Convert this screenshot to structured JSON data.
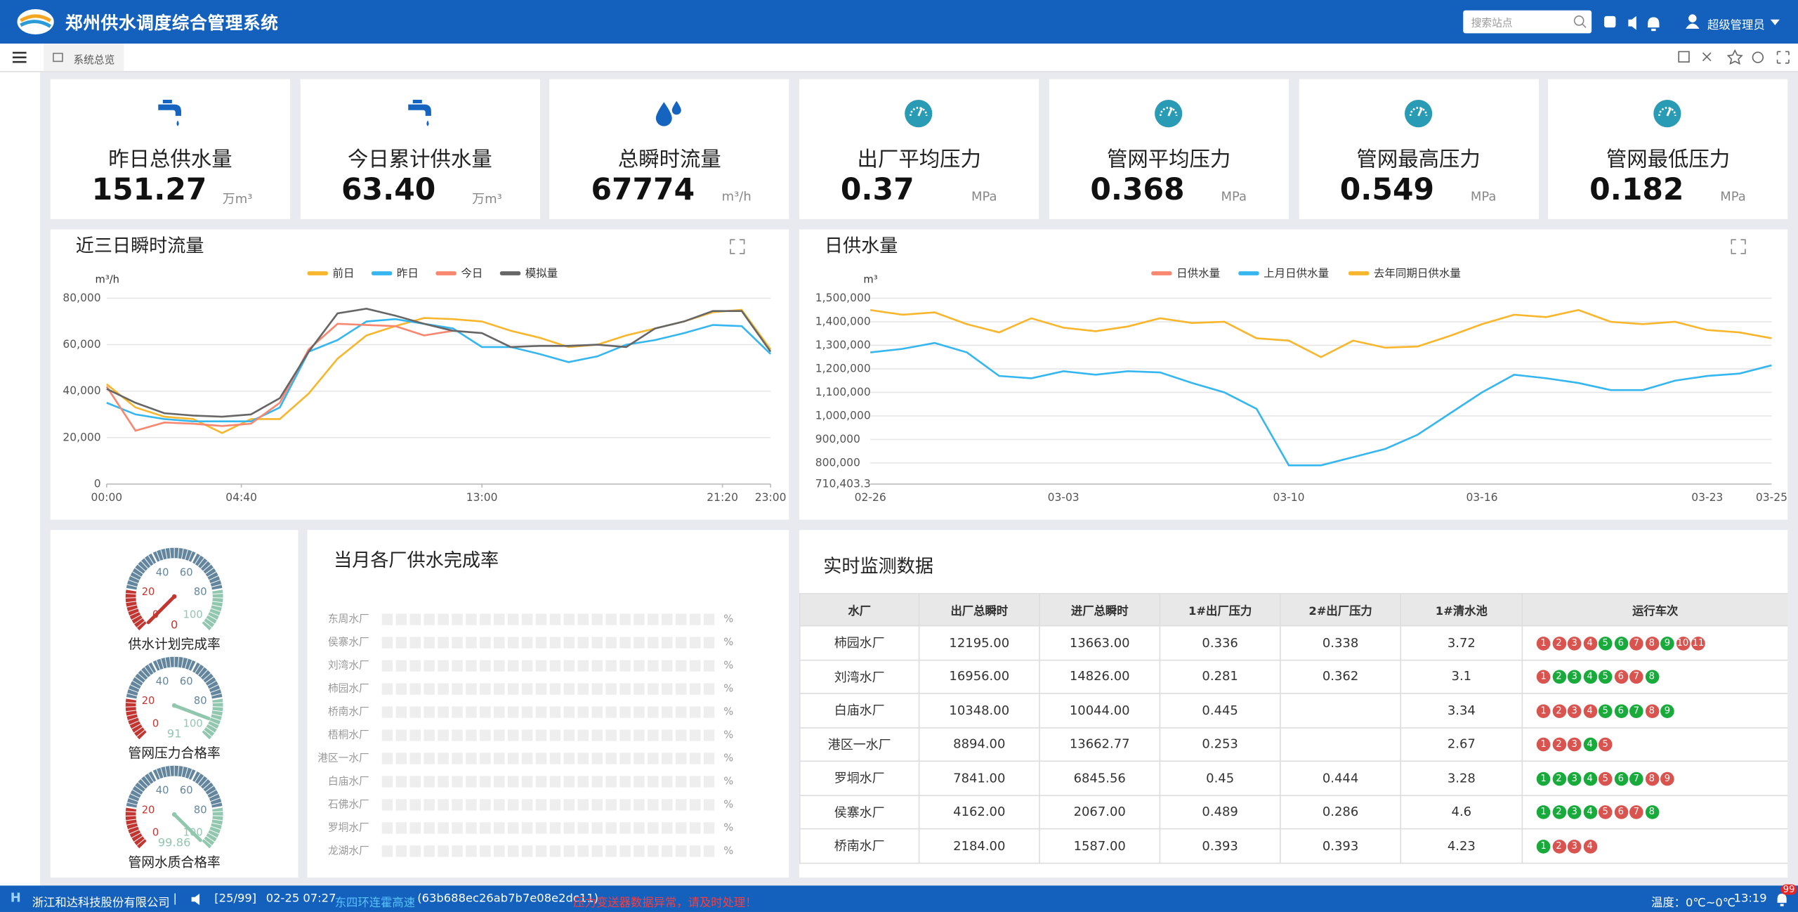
{
  "header": {
    "title": "郑州供水调度综合管理系统",
    "search_placeholder": "搜索站点",
    "user": "超级管理员"
  },
  "tabs": [
    "系统总览"
  ],
  "kpis": [
    {
      "label": "昨日总供水量",
      "value": "151.27",
      "unit": "万m³"
    },
    {
      "label": "今日累计供水量",
      "value": "63.40",
      "unit": "万m³"
    },
    {
      "label": "总瞬时流量",
      "value": "67774",
      "unit": "m³/h"
    },
    {
      "label": "出厂平均压力",
      "value": "0.37",
      "unit": "MPa"
    },
    {
      "label": "管网平均压力",
      "value": "0.368",
      "unit": "MPa"
    },
    {
      "label": "管网最高压力",
      "value": "0.549",
      "unit": "MPa"
    },
    {
      "label": "管网最低压力",
      "value": "0.182",
      "unit": "MPa"
    }
  ],
  "flow_chart": {
    "type": "line",
    "title": "近三日瞬时流量",
    "y_unit": "m³/h",
    "x": [
      0,
      60,
      120,
      180,
      240,
      300,
      360,
      420,
      480,
      540,
      600,
      660,
      720,
      780,
      840,
      900,
      960,
      1020,
      1080,
      1140,
      1200,
      1260,
      1320,
      1380
    ],
    "xlim": [
      0,
      1380
    ],
    "xticks": [
      {
        "value": 0,
        "label": "00:00"
      },
      {
        "value": 280,
        "label": "04:40"
      },
      {
        "value": 780,
        "label": "13:00"
      },
      {
        "value": 1280,
        "label": "21:20"
      },
      {
        "value": 1380,
        "label": "23:00"
      }
    ],
    "ylim": [
      0,
      80000
    ],
    "yticks": [
      0,
      {
        "value": 20000,
        "label": "20,000"
      },
      {
        "value": 40000,
        "label": "40,000"
      },
      {
        "value": 60000,
        "label": "60,000"
      },
      {
        "value": 80000,
        "label": "80,000"
      }
    ],
    "grid": true,
    "series": [
      {
        "name": "前日",
        "color": "#f8b62d",
        "values": [
          43000,
          33000,
          29000,
          28000,
          22000,
          28000,
          28000,
          39000,
          54000,
          64000,
          68000,
          71500,
          71000,
          70000,
          66000,
          63000,
          59000,
          60000,
          64000,
          67000,
          70000,
          74000,
          75000,
          58000
        ]
      },
      {
        "name": "昨日",
        "color": "#35b6ef",
        "values": [
          35000,
          30000,
          28000,
          27000,
          27000,
          27000,
          33000,
          57000,
          62000,
          70000,
          71000,
          69000,
          67000,
          59000,
          59000,
          56000,
          52500,
          55000,
          60000,
          62000,
          65000,
          68500,
          68000,
          56000
        ]
      },
      {
        "name": "今日",
        "color": "#f7876f",
        "values": [
          42000,
          23000,
          26500,
          26000,
          25000,
          26000,
          35000,
          58000,
          69000,
          68500,
          68000,
          64000,
          66000,
          null,
          null,
          null,
          null,
          null,
          null,
          null,
          null,
          null,
          null,
          null
        ]
      },
      {
        "name": "模拟量",
        "color": "#666666",
        "values": [
          41000,
          35000,
          30500,
          29500,
          29000,
          30000,
          37000,
          57000,
          73500,
          75500,
          72500,
          69000,
          66000,
          65000,
          59000,
          59500,
          59500,
          60000,
          59000,
          67000,
          70000,
          74500,
          74500,
          57000
        ]
      }
    ]
  },
  "daily_chart": {
    "type": "line",
    "title": "日供水量",
    "y_unit": "m³",
    "categories": [
      "02-26",
      null,
      null,
      null,
      null,
      null,
      "03-03",
      null,
      null,
      null,
      null,
      null,
      null,
      "03-10",
      null,
      null,
      null,
      null,
      null,
      "03-16",
      null,
      null,
      null,
      null,
      null,
      null,
      "03-23",
      null,
      "03-25"
    ],
    "ylim": [
      710403.3,
      1500000
    ],
    "yticks": [
      {
        "value": 710403.3,
        "label": "710,403.3"
      },
      {
        "value": 800000,
        "label": "800,000"
      },
      {
        "value": 900000,
        "label": "900,000"
      },
      {
        "value": 1000000,
        "label": "1,000,000"
      },
      {
        "value": 1100000,
        "label": "1,100,000"
      },
      {
        "value": 1200000,
        "label": "1,200,000"
      },
      {
        "value": 1300000,
        "label": "1,300,000"
      },
      {
        "value": 1400000,
        "label": "1,400,000"
      },
      {
        "value": 1500000,
        "label": "1,500,000"
      }
    ],
    "grid": true,
    "series": [
      {
        "name": "日供水量",
        "color": "#f7876f",
        "values": [
          null,
          null,
          null,
          null,
          null,
          null,
          null,
          null,
          null,
          null,
          null,
          null,
          null,
          null,
          null,
          null,
          null,
          null,
          null,
          null,
          null,
          null,
          null,
          null,
          null,
          null,
          null,
          null,
          null
        ]
      },
      {
        "name": "上月日供水量",
        "color": "#35b6ef",
        "values": [
          1270000,
          1285000,
          1310000,
          1270000,
          1170000,
          1160000,
          1190000,
          1175000,
          1190000,
          1185000,
          1140000,
          1100000,
          1030000,
          790000,
          790000,
          825000,
          860000,
          920000,
          1010000,
          1100000,
          1175000,
          1160000,
          1140000,
          1110000,
          1110000,
          1150000,
          1170000,
          1180000,
          1215000
        ]
      },
      {
        "name": "去年同期日供水量",
        "color": "#f8b62d",
        "values": [
          1450000,
          1430000,
          1440000,
          1390000,
          1355000,
          1415000,
          1375000,
          1360000,
          1380000,
          1415000,
          1395000,
          1400000,
          1330000,
          1320000,
          1250000,
          1320000,
          1290000,
          1295000,
          1340000,
          1390000,
          1430000,
          1420000,
          1450000,
          1400000,
          1390000,
          1400000,
          1365000,
          1355000,
          1330000
        ]
      }
    ]
  },
  "gauges": {
    "type": "gauge",
    "min": 0,
    "max": 100,
    "ticks": [
      0,
      20,
      40,
      60,
      80,
      100
    ],
    "bands": [
      {
        "to": 20,
        "color": "#c23531"
      },
      {
        "to": 80,
        "color": "#63869e"
      },
      {
        "to": 100,
        "color": "#91c7ae"
      }
    ],
    "items": [
      {
        "label": "供水计划完成率",
        "value": 0
      },
      {
        "label": "管网压力合格率",
        "value": 91
      },
      {
        "label": "管网水质合格率",
        "value": 99.86
      }
    ]
  },
  "completion_chart": {
    "type": "bar",
    "title": "当月各厂供水完成率",
    "categories": [
      "东周水厂",
      "侯寨水厂",
      "刘湾水厂",
      "柿园水厂",
      "桥南水厂",
      "梧桐水厂",
      "港区一水厂",
      "白庙水厂",
      "石佛水厂",
      "罗垌水厂",
      "龙湖水厂"
    ],
    "values": [
      null,
      null,
      null,
      null,
      null,
      null,
      null,
      null,
      null,
      null,
      null
    ],
    "unit": "%"
  },
  "monitor_table": {
    "title": "实时监测数据",
    "columns": [
      "水厂",
      "出厂总瞬时",
      "进厂总瞬时",
      "1#出厂压力",
      "2#出厂压力",
      "1#清水池",
      "运行车次"
    ],
    "trip_colors": {
      "r": "#d9534f",
      "g": "#19aa3c"
    },
    "rows": [
      {
        "cells": [
          "柿园水厂",
          "12195.00",
          "13663.00",
          "0.336",
          "0.338",
          "3.72"
        ],
        "trips": [
          1,
          2,
          3,
          4,
          5,
          6,
          7,
          8,
          9,
          10,
          11
        ],
        "trip_states": [
          "r",
          "r",
          "r",
          "r",
          "g",
          "g",
          "r",
          "r",
          "g",
          "r",
          "r"
        ]
      },
      {
        "cells": [
          "刘湾水厂",
          "16956.00",
          "14826.00",
          "0.281",
          "0.362",
          "3.1"
        ],
        "trips": [
          1,
          2,
          3,
          4,
          5,
          6,
          7,
          8
        ],
        "trip_states": [
          "r",
          "g",
          "g",
          "g",
          "g",
          "r",
          "r",
          "g"
        ]
      },
      {
        "cells": [
          "白庙水厂",
          "10348.00",
          "10044.00",
          "0.445",
          "",
          "3.34"
        ],
        "trips": [
          1,
          2,
          3,
          4,
          5,
          6,
          7,
          8,
          9
        ],
        "trip_states": [
          "r",
          "r",
          "r",
          "r",
          "g",
          "g",
          "g",
          "r",
          "g"
        ]
      },
      {
        "cells": [
          "港区一水厂",
          "8894.00",
          "13662.77",
          "0.253",
          "",
          "2.67"
        ],
        "trips": [
          1,
          2,
          3,
          4,
          5
        ],
        "trip_states": [
          "r",
          "r",
          "r",
          "g",
          "r"
        ]
      },
      {
        "cells": [
          "罗垌水厂",
          "7841.00",
          "6845.56",
          "0.45",
          "0.444",
          "3.28"
        ],
        "trips": [
          1,
          2,
          3,
          4,
          5,
          6,
          7,
          8,
          9
        ],
        "trip_states": [
          "g",
          "g",
          "g",
          "g",
          "r",
          "g",
          "g",
          "r",
          "r"
        ]
      },
      {
        "cells": [
          "侯寨水厂",
          "4162.00",
          "2067.00",
          "0.489",
          "0.286",
          "4.6"
        ],
        "trips": [
          1,
          2,
          3,
          4,
          5,
          6,
          7,
          8
        ],
        "trip_states": [
          "g",
          "g",
          "g",
          "g",
          "r",
          "r",
          "r",
          "g"
        ]
      },
      {
        "cells": [
          "桥南水厂",
          "2184.00",
          "1587.00",
          "0.393",
          "0.393",
          "4.23"
        ],
        "trips": [
          1,
          2,
          3,
          4
        ],
        "trip_states": [
          "g",
          "r",
          "r",
          "r"
        ]
      }
    ]
  },
  "footer": {
    "company": "浙江和达科技股份有限公司",
    "count": "[25/99]",
    "time": "02-25 07:27",
    "station": "东四环连霍高速",
    "device_id": "(63b688ec26ab7b7e08e2dc11)",
    "alert": "压力变送器数据异常，请及时处理！",
    "temperature": "温度：0℃~0℃",
    "clock": "13:19",
    "badge": "99"
  }
}
